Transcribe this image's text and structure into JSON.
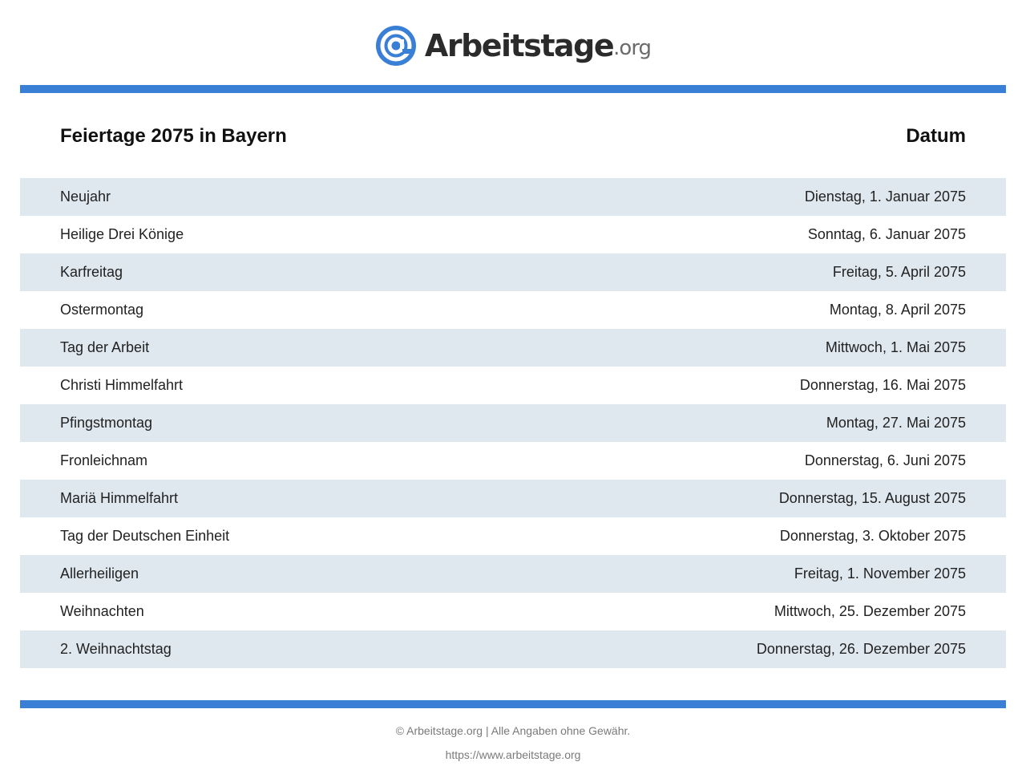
{
  "brand": {
    "name": "Arbeitstage",
    "tld": ".org",
    "accent": "#3a7fd6"
  },
  "table": {
    "title": "Feiertage 2075 in Bayern",
    "date_header": "Datum",
    "rows": [
      {
        "name": "Neujahr",
        "date": "Dienstag, 1. Januar 2075"
      },
      {
        "name": "Heilige Drei Könige",
        "date": "Sonntag, 6. Januar 2075"
      },
      {
        "name": "Karfreitag",
        "date": "Freitag, 5. April 2075"
      },
      {
        "name": "Ostermontag",
        "date": "Montag, 8. April 2075"
      },
      {
        "name": "Tag der Arbeit",
        "date": "Mittwoch, 1. Mai 2075"
      },
      {
        "name": "Christi Himmelfahrt",
        "date": "Donnerstag, 16. Mai 2075"
      },
      {
        "name": "Pfingstmontag",
        "date": "Montag, 27. Mai 2075"
      },
      {
        "name": "Fronleichnam",
        "date": "Donnerstag, 6. Juni 2075"
      },
      {
        "name": "Mariä Himmelfahrt",
        "date": "Donnerstag, 15. August 2075"
      },
      {
        "name": "Tag der Deutschen Einheit",
        "date": "Donnerstag, 3. Oktober 2075"
      },
      {
        "name": "Allerheiligen",
        "date": "Freitag, 1. November 2075"
      },
      {
        "name": "Weihnachten",
        "date": "Mittwoch, 25. Dezember 2075"
      },
      {
        "name": "2. Weihnachtstag",
        "date": "Donnerstag, 26. Dezember 2075"
      }
    ]
  },
  "footer": {
    "copyright": "© Arbeitstage.org | Alle Angaben ohne Gewähr.",
    "url": "https://www.arbeitstage.org"
  }
}
